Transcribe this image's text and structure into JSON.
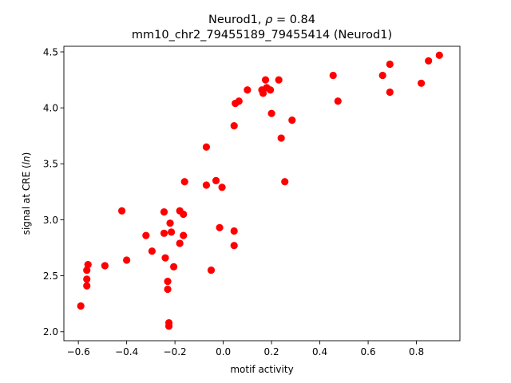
{
  "chart_data": {
    "type": "scatter",
    "title_line1": "Neurod1, ρ = 0.84",
    "title_line2": "mm10_chr2_79455189_79455414 (Neurod1)",
    "xlabel": "motif activity",
    "ylabel": "signal at CRE (ln)",
    "xlim": [
      -0.66,
      0.98
    ],
    "ylim": [
      1.92,
      4.55
    ],
    "xticks": [
      -0.6,
      -0.4,
      -0.2,
      0.0,
      0.2,
      0.4,
      0.6,
      0.8
    ],
    "xtick_labels": [
      "−0.6",
      "−0.4",
      "−0.2",
      "0.0",
      "0.2",
      "0.4",
      "0.6",
      "0.8"
    ],
    "yticks": [
      2.0,
      2.5,
      3.0,
      3.5,
      4.0,
      4.5
    ],
    "ytick_labels": [
      "2.0",
      "2.5",
      "3.0",
      "3.5",
      "4.0",
      "4.5"
    ],
    "grid": false,
    "point_color": "#ff0000",
    "points": [
      {
        "x": -0.59,
        "y": 2.23
      },
      {
        "x": -0.565,
        "y": 2.55
      },
      {
        "x": -0.56,
        "y": 2.6
      },
      {
        "x": -0.565,
        "y": 2.47
      },
      {
        "x": -0.565,
        "y": 2.41
      },
      {
        "x": -0.49,
        "y": 2.59
      },
      {
        "x": -0.42,
        "y": 3.08
      },
      {
        "x": -0.4,
        "y": 2.64
      },
      {
        "x": -0.32,
        "y": 2.86
      },
      {
        "x": -0.295,
        "y": 2.72
      },
      {
        "x": -0.245,
        "y": 3.07
      },
      {
        "x": -0.245,
        "y": 2.88
      },
      {
        "x": -0.24,
        "y": 2.66
      },
      {
        "x": -0.23,
        "y": 2.45
      },
      {
        "x": -0.23,
        "y": 2.38
      },
      {
        "x": -0.225,
        "y": 2.08
      },
      {
        "x": -0.225,
        "y": 2.05
      },
      {
        "x": -0.22,
        "y": 2.97
      },
      {
        "x": -0.215,
        "y": 2.89
      },
      {
        "x": -0.205,
        "y": 2.58
      },
      {
        "x": -0.18,
        "y": 3.08
      },
      {
        "x": -0.18,
        "y": 2.79
      },
      {
        "x": -0.165,
        "y": 2.86
      },
      {
        "x": -0.165,
        "y": 3.05
      },
      {
        "x": -0.16,
        "y": 3.34
      },
      {
        "x": -0.07,
        "y": 3.65
      },
      {
        "x": -0.07,
        "y": 3.31
      },
      {
        "x": -0.05,
        "y": 2.55
      },
      {
        "x": -0.03,
        "y": 3.35
      },
      {
        "x": -0.015,
        "y": 2.93
      },
      {
        "x": -0.005,
        "y": 3.29
      },
      {
        "x": 0.045,
        "y": 2.9
      },
      {
        "x": 0.045,
        "y": 2.77
      },
      {
        "x": 0.045,
        "y": 3.84
      },
      {
        "x": 0.05,
        "y": 4.04
      },
      {
        "x": 0.065,
        "y": 4.06
      },
      {
        "x": 0.1,
        "y": 4.16
      },
      {
        "x": 0.16,
        "y": 4.16
      },
      {
        "x": 0.165,
        "y": 4.13
      },
      {
        "x": 0.175,
        "y": 4.25
      },
      {
        "x": 0.18,
        "y": 4.18
      },
      {
        "x": 0.195,
        "y": 4.16
      },
      {
        "x": 0.2,
        "y": 3.95
      },
      {
        "x": 0.23,
        "y": 4.25
      },
      {
        "x": 0.24,
        "y": 3.73
      },
      {
        "x": 0.255,
        "y": 3.34
      },
      {
        "x": 0.285,
        "y": 3.89
      },
      {
        "x": 0.455,
        "y": 4.29
      },
      {
        "x": 0.475,
        "y": 4.06
      },
      {
        "x": 0.66,
        "y": 4.29
      },
      {
        "x": 0.69,
        "y": 4.39
      },
      {
        "x": 0.69,
        "y": 4.14
      },
      {
        "x": 0.82,
        "y": 4.22
      },
      {
        "x": 0.85,
        "y": 4.42
      },
      {
        "x": 0.895,
        "y": 4.47
      }
    ]
  }
}
